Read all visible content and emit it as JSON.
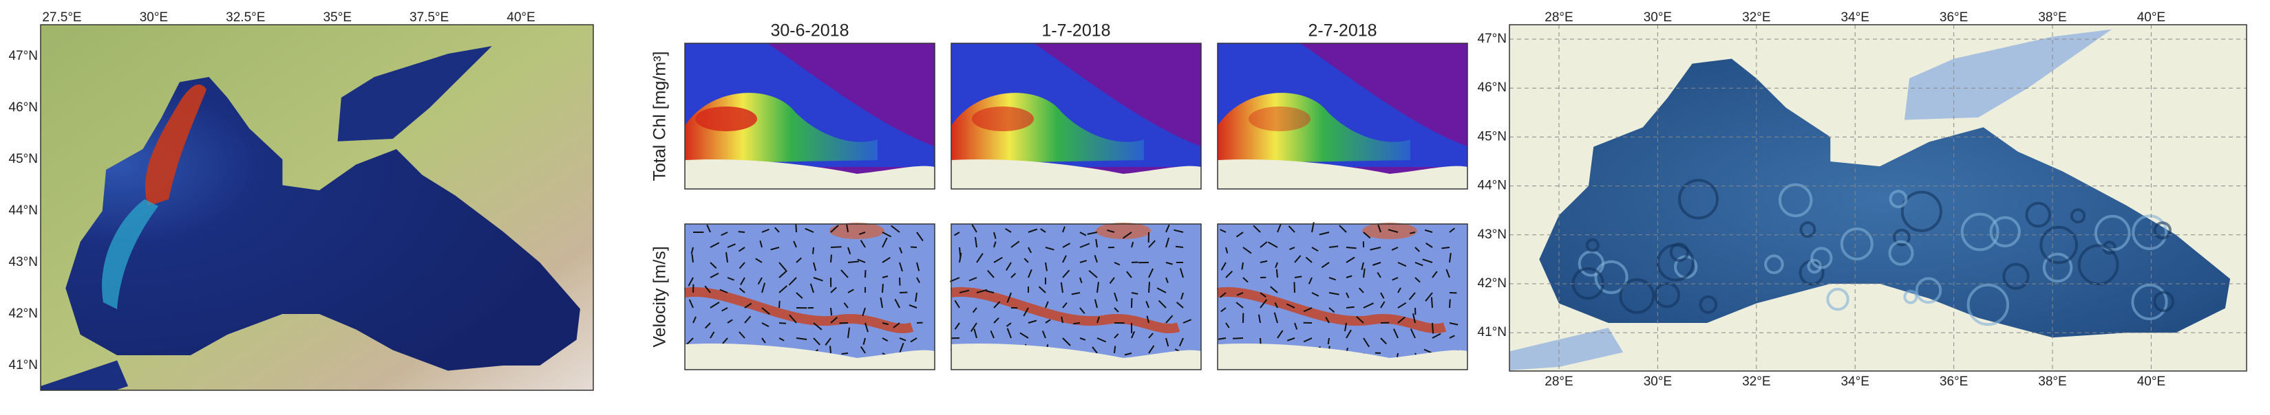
{
  "left_map": {
    "xticks": [
      "27.5°E",
      "30°E",
      "32.5°E",
      "35°E",
      "37.5°E",
      "40°E"
    ],
    "yticks": [
      "47°N",
      "46°N",
      "45°N",
      "44°N",
      "43°N",
      "42°N",
      "41°N"
    ]
  },
  "panels": {
    "dates": [
      "30-6-2018",
      "1-7-2018",
      "2-7-2018"
    ],
    "row_labels": [
      "Total Chl [mg/m³]",
      "Velocity [m/s]"
    ]
  },
  "right_map": {
    "xticks": [
      "28°E",
      "30°E",
      "32°E",
      "34°E",
      "36°E",
      "38°E",
      "40°E"
    ],
    "yticks": [
      "47°N",
      "46°N",
      "45°N",
      "44°N",
      "43°N",
      "42°N",
      "41°N"
    ]
  }
}
